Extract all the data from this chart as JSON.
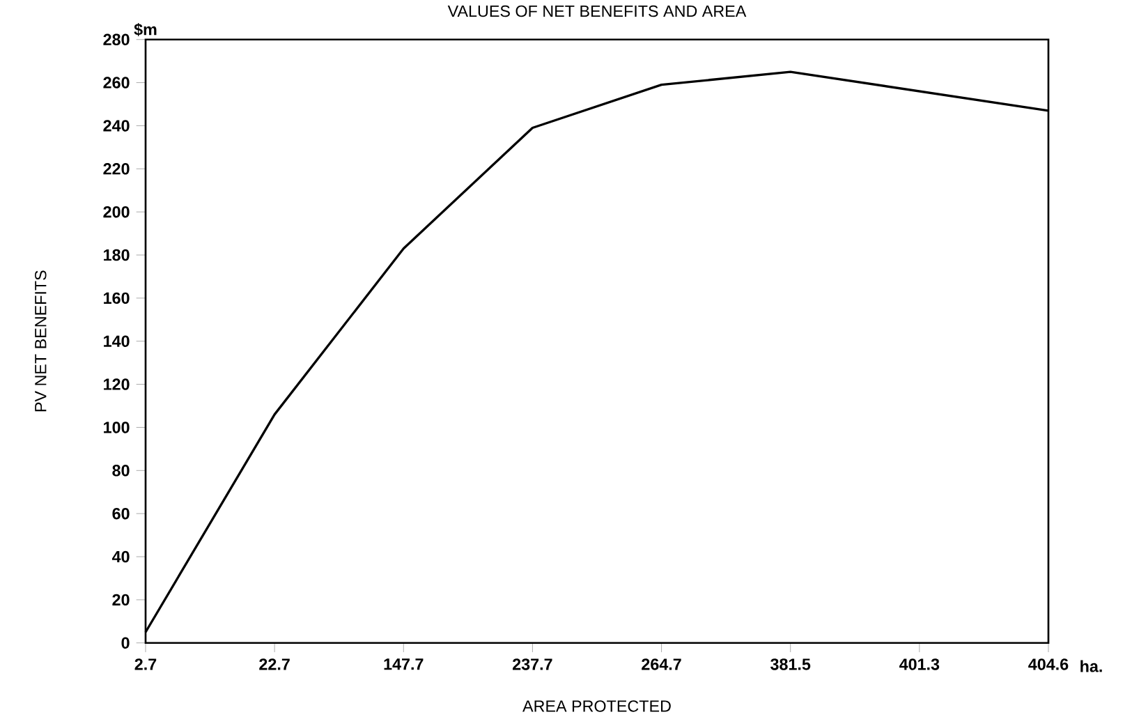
{
  "chart_data": {
    "type": "line",
    "title": "VALUES OF NET BENEFITS AND AREA",
    "xlabel": "AREA PROTECTED",
    "ylabel": "PV NET BENEFITS",
    "annotations": [
      "$m",
      "ha."
    ],
    "categories": [
      "2.7",
      "22.7",
      "147.7",
      "237.7",
      "264.7",
      "381.5",
      "401.3",
      "404.6"
    ],
    "values": [
      5,
      106,
      183,
      239,
      259,
      265,
      256,
      247
    ],
    "color": "#000000",
    "ylim": [
      0,
      280
    ],
    "yticks": [
      0,
      20,
      40,
      60,
      80,
      100,
      120,
      140,
      160,
      180,
      200,
      220,
      240,
      260,
      280
    ]
  }
}
